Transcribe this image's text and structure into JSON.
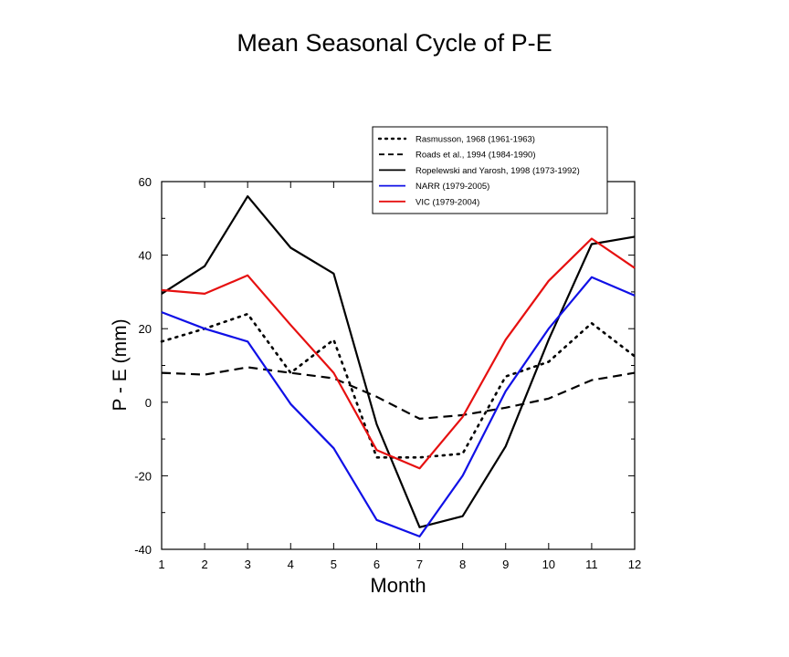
{
  "chart_data": {
    "type": "line",
    "title": "Mean Seasonal Cycle of P-E",
    "xlabel": "Month",
    "ylabel": "P - E (mm)",
    "x": [
      1,
      2,
      3,
      4,
      5,
      6,
      7,
      8,
      9,
      10,
      11,
      12
    ],
    "xlim": [
      1,
      12
    ],
    "ylim": [
      -40,
      60
    ],
    "yticks": [
      -40,
      -20,
      0,
      20,
      40,
      60
    ],
    "legend_position": "top-right",
    "grid": false,
    "series": [
      {
        "name": "Rasmusson, 1968 (1961-1963)",
        "color": "#000000",
        "style": "dotted",
        "values": [
          16.5,
          20,
          24,
          8,
          17,
          -15,
          -15,
          -14,
          7,
          11,
          21.5,
          12.5
        ]
      },
      {
        "name": "Roads et al., 1994 (1984-1990)",
        "color": "#000000",
        "style": "dashed",
        "values": [
          8,
          7.5,
          9.5,
          8,
          6.5,
          1.5,
          -4.5,
          -3.5,
          -1.5,
          1,
          6,
          8
        ]
      },
      {
        "name": "Ropelewski and Yarosh, 1998 (1973-1992)",
        "color": "#000000",
        "style": "solid",
        "values": [
          29.5,
          37,
          56,
          42,
          35,
          -6,
          -34,
          -31,
          -12,
          17,
          43,
          45
        ]
      },
      {
        "name": "NARR (1979-2005)",
        "color": "#1010e6",
        "style": "solid",
        "values": [
          24.5,
          20,
          16.5,
          -0.5,
          -12.5,
          -32,
          -36.5,
          -20,
          3,
          20,
          34,
          29
        ]
      },
      {
        "name": "VIC (1979-2004)",
        "color": "#e61010",
        "style": "solid",
        "values": [
          30.5,
          29.5,
          34.5,
          21,
          8,
          -13,
          -18,
          -4,
          17,
          33,
          44.5,
          36.5
        ]
      }
    ]
  }
}
